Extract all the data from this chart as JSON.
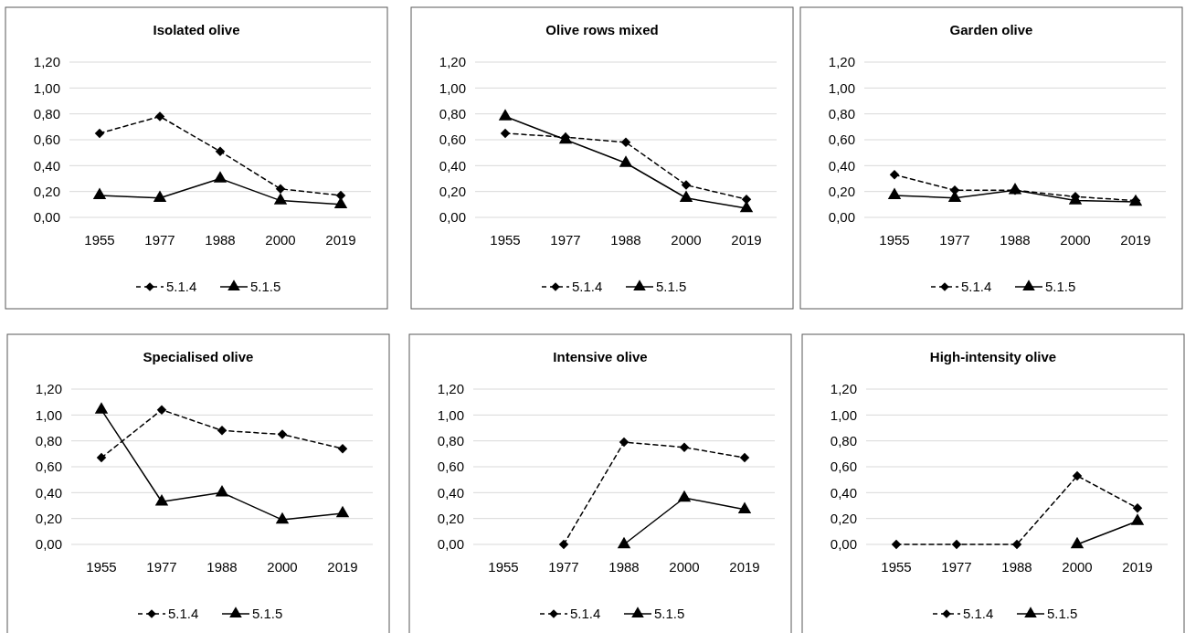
{
  "chart_data": [
    {
      "type": "line",
      "title": "Isolated olive",
      "categories": [
        "1955",
        "1977",
        "1988",
        "2000",
        "2019"
      ],
      "ylim": [
        0,
        1.2
      ],
      "yticks": [
        {
          "value": 0,
          "label": "0,00"
        },
        {
          "value": 0.2,
          "label": "0,20"
        },
        {
          "value": 0.4,
          "label": "0,40"
        },
        {
          "value": 0.6,
          "label": "0,60"
        },
        {
          "value": 0.8,
          "label": "0,80"
        },
        {
          "value": 1,
          "label": "1,00"
        },
        {
          "value": 1.2,
          "label": "1,20"
        }
      ],
      "grid": "y",
      "legend": "bottom",
      "series": [
        {
          "name": "5.1.4",
          "color": "#000000",
          "marker": "diamond",
          "line_style": "dashed",
          "values": [
            0.65,
            0.78,
            0.51,
            0.22,
            0.17
          ]
        },
        {
          "name": "5.1.5",
          "color": "#000000",
          "marker": "triangle",
          "line_style": "solid",
          "values": [
            0.17,
            0.15,
            0.3,
            0.13,
            0.1
          ]
        }
      ]
    },
    {
      "type": "line",
      "title": "Olive rows mixed",
      "categories": [
        "1955",
        "1977",
        "1988",
        "2000",
        "2019"
      ],
      "ylim": [
        0,
        1.2
      ],
      "yticks": [
        {
          "value": 0,
          "label": "0,00"
        },
        {
          "value": 0.2,
          "label": "0,20"
        },
        {
          "value": 0.4,
          "label": "0,40"
        },
        {
          "value": 0.6,
          "label": "0,60"
        },
        {
          "value": 0.8,
          "label": "0,80"
        },
        {
          "value": 1,
          "label": "1,00"
        },
        {
          "value": 1.2,
          "label": "1,20"
        }
      ],
      "grid": "y",
      "legend": "bottom",
      "series": [
        {
          "name": "5.1.4",
          "color": "#000000",
          "marker": "diamond",
          "line_style": "dashed",
          "values": [
            0.65,
            0.62,
            0.58,
            0.25,
            0.14
          ]
        },
        {
          "name": "5.1.5",
          "color": "#000000",
          "marker": "triangle",
          "line_style": "solid",
          "values": [
            0.78,
            0.6,
            0.42,
            0.15,
            0.07
          ]
        }
      ]
    },
    {
      "type": "line",
      "title": "Garden olive",
      "categories": [
        "1955",
        "1977",
        "1988",
        "2000",
        "2019"
      ],
      "ylim": [
        0,
        1.2
      ],
      "yticks": [
        {
          "value": 0,
          "label": "0,00"
        },
        {
          "value": 0.2,
          "label": "0,20"
        },
        {
          "value": 0.4,
          "label": "0,40"
        },
        {
          "value": 0.6,
          "label": "0,60"
        },
        {
          "value": 0.8,
          "label": "0,80"
        },
        {
          "value": 1,
          "label": "1,00"
        },
        {
          "value": 1.2,
          "label": "1,20"
        }
      ],
      "grid": "y",
      "legend": "bottom",
      "series": [
        {
          "name": "5.1.4",
          "color": "#000000",
          "marker": "diamond",
          "line_style": "dashed",
          "values": [
            0.33,
            0.21,
            0.21,
            0.16,
            0.13
          ]
        },
        {
          "name": "5.1.5",
          "color": "#000000",
          "marker": "triangle",
          "line_style": "solid",
          "values": [
            0.17,
            0.15,
            0.21,
            0.13,
            0.12
          ]
        }
      ]
    },
    {
      "type": "line",
      "title": "Specialised olive",
      "categories": [
        "1955",
        "1977",
        "1988",
        "2000",
        "2019"
      ],
      "ylim": [
        0,
        1.2
      ],
      "yticks": [
        {
          "value": 0,
          "label": "0,00"
        },
        {
          "value": 0.2,
          "label": "0,20"
        },
        {
          "value": 0.4,
          "label": "0,40"
        },
        {
          "value": 0.6,
          "label": "0,60"
        },
        {
          "value": 0.8,
          "label": "0,80"
        },
        {
          "value": 1,
          "label": "1,00"
        },
        {
          "value": 1.2,
          "label": "1,20"
        }
      ],
      "grid": "y",
      "legend": "bottom",
      "series": [
        {
          "name": "5.1.4",
          "color": "#000000",
          "marker": "diamond",
          "line_style": "dashed",
          "values": [
            0.67,
            1.04,
            0.88,
            0.85,
            0.74
          ]
        },
        {
          "name": "5.1.5",
          "color": "#000000",
          "marker": "triangle",
          "line_style": "solid",
          "values": [
            1.04,
            0.33,
            0.4,
            0.19,
            0.24
          ]
        }
      ]
    },
    {
      "type": "line",
      "title": "Intensive olive",
      "categories": [
        "1955",
        "1977",
        "1988",
        "2000",
        "2019"
      ],
      "ylim": [
        0,
        1.2
      ],
      "yticks": [
        {
          "value": 0,
          "label": "0,00"
        },
        {
          "value": 0.2,
          "label": "0,20"
        },
        {
          "value": 0.4,
          "label": "0,40"
        },
        {
          "value": 0.6,
          "label": "0,60"
        },
        {
          "value": 0.8,
          "label": "0,80"
        },
        {
          "value": 1,
          "label": "1,00"
        },
        {
          "value": 1.2,
          "label": "1,20"
        }
      ],
      "grid": "y",
      "legend": "bottom",
      "series": [
        {
          "name": "5.1.4",
          "color": "#000000",
          "marker": "diamond",
          "line_style": "dashed",
          "values": [
            null,
            0,
            0.79,
            0.75,
            0.67
          ]
        },
        {
          "name": "5.1.5",
          "color": "#000000",
          "marker": "triangle",
          "line_style": "solid",
          "values": [
            null,
            null,
            0,
            0.36,
            0.27
          ]
        }
      ]
    },
    {
      "type": "line",
      "title": "High-intensity olive",
      "categories": [
        "1955",
        "1977",
        "1988",
        "2000",
        "2019"
      ],
      "ylim": [
        0,
        1.2
      ],
      "yticks": [
        {
          "value": 0,
          "label": "0,00"
        },
        {
          "value": 0.2,
          "label": "0,20"
        },
        {
          "value": 0.4,
          "label": "0,40"
        },
        {
          "value": 0.6,
          "label": "0,60"
        },
        {
          "value": 0.8,
          "label": "0,80"
        },
        {
          "value": 1,
          "label": "1,00"
        },
        {
          "value": 1.2,
          "label": "1,20"
        }
      ],
      "grid": "y",
      "legend": "bottom",
      "series": [
        {
          "name": "5.1.4",
          "color": "#000000",
          "marker": "diamond",
          "line_style": "dashed",
          "values": [
            0,
            0,
            0,
            0.53,
            0.28
          ]
        },
        {
          "name": "5.1.5",
          "color": "#000000",
          "marker": "triangle",
          "line_style": "solid",
          "values": [
            null,
            null,
            null,
            0,
            0.18
          ]
        }
      ]
    }
  ]
}
